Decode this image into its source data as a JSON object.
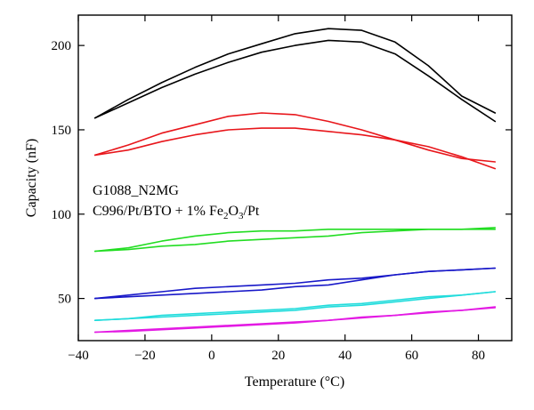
{
  "chart_data": {
    "type": "line",
    "xlabel": "Temperature (°C)",
    "ylabel": "Capacity (nF)",
    "xlim": [
      -40,
      90
    ],
    "ylim": [
      25,
      218
    ],
    "x_ticks": [
      -40,
      -20,
      0,
      20,
      40,
      60,
      80
    ],
    "y_ticks": [
      50,
      100,
      150,
      200
    ],
    "x_tick_labels": [
      "−40",
      "−20",
      "0",
      "20",
      "40",
      "60",
      "80"
    ],
    "y_tick_labels": [
      "50",
      "100",
      "150",
      "200"
    ],
    "annotations": [
      {
        "text": "G1088_N2MG"
      },
      {
        "text": "C996/Pt/BTO + 1% Fe",
        "sub": "2",
        "text2": "O",
        "sub2": "3",
        "text3": "/Pt"
      }
    ],
    "series": [
      {
        "color": "#000000",
        "x": [
          -35,
          -25,
          -15,
          -5,
          5,
          15,
          25,
          35,
          45,
          55,
          65,
          75,
          85
        ],
        "y": [
          157,
          168,
          178,
          187,
          195,
          201,
          207,
          210,
          209,
          202,
          188,
          170,
          160
        ]
      },
      {
        "color": "#000000",
        "x": [
          -35,
          -25,
          -15,
          -5,
          5,
          15,
          25,
          35,
          45,
          55,
          65,
          75,
          85
        ],
        "y": [
          157,
          166,
          175,
          183,
          190,
          196,
          200,
          203,
          202,
          195,
          182,
          168,
          155
        ]
      },
      {
        "color": "#e8161b",
        "x": [
          -35,
          -25,
          -15,
          -5,
          5,
          15,
          25,
          35,
          45,
          55,
          65,
          75,
          85
        ],
        "y": [
          135,
          141,
          148,
          153,
          158,
          160,
          159,
          155,
          150,
          144,
          138,
          133,
          131
        ]
      },
      {
        "color": "#e8161b",
        "x": [
          -35,
          -25,
          -15,
          -5,
          5,
          15,
          25,
          35,
          45,
          55,
          65,
          75,
          85
        ],
        "y": [
          135,
          138,
          143,
          147,
          150,
          151,
          151,
          149,
          147,
          144,
          140,
          134,
          127
        ]
      },
      {
        "color": "#22dd22",
        "x": [
          -35,
          -25,
          -15,
          -5,
          5,
          15,
          25,
          35,
          45,
          55,
          65,
          75,
          85
        ],
        "y": [
          78,
          80,
          84,
          87,
          89,
          90,
          90,
          91,
          91,
          91,
          91,
          91,
          92
        ]
      },
      {
        "color": "#22dd22",
        "x": [
          -35,
          -25,
          -15,
          -5,
          5,
          15,
          25,
          35,
          45,
          55,
          65,
          75,
          85
        ],
        "y": [
          78,
          79,
          81,
          82,
          84,
          85,
          86,
          87,
          89,
          90,
          91,
          91,
          91
        ]
      },
      {
        "color": "#1818c8",
        "x": [
          -35,
          -25,
          -15,
          -5,
          5,
          15,
          25,
          35,
          45,
          55,
          65,
          75,
          85
        ],
        "y": [
          50,
          52,
          54,
          56,
          57,
          58,
          59,
          61,
          62,
          64,
          66,
          67,
          68
        ]
      },
      {
        "color": "#1818c8",
        "x": [
          -35,
          -25,
          -15,
          -5,
          5,
          15,
          25,
          35,
          45,
          55,
          65,
          75,
          85
        ],
        "y": [
          50,
          51,
          52,
          53,
          54,
          55,
          57,
          58,
          61,
          64,
          66,
          67,
          68
        ]
      },
      {
        "color": "#22dcdc",
        "x": [
          -35,
          -25,
          -15,
          -5,
          5,
          15,
          25,
          35,
          45,
          55,
          65,
          75,
          85
        ],
        "y": [
          37,
          38,
          40,
          41,
          42,
          43,
          44,
          46,
          47,
          49,
          51,
          52,
          54
        ]
      },
      {
        "color": "#22dcdc",
        "x": [
          -35,
          -25,
          -15,
          -5,
          5,
          15,
          25,
          35,
          45,
          55,
          65,
          75,
          85
        ],
        "y": [
          37,
          38,
          39,
          40,
          41,
          42,
          43,
          45,
          46,
          48,
          50,
          52,
          54
        ]
      },
      {
        "color": "#e31ae3",
        "x": [
          -35,
          -25,
          -15,
          -5,
          5,
          15,
          25,
          35,
          45,
          55,
          65,
          75,
          85
        ],
        "y": [
          30,
          31,
          32,
          33,
          34,
          35,
          36,
          37,
          39,
          40,
          42,
          43,
          45
        ]
      },
      {
        "color": "#e31ae3",
        "x": [
          -35,
          -25,
          -15,
          -5,
          5,
          15,
          25,
          35,
          45,
          55,
          65,
          75,
          85
        ],
        "y": [
          30,
          30.5,
          31.5,
          32.5,
          33.5,
          34.5,
          35.5,
          37,
          38.5,
          40,
          41.5,
          43,
          44.5
        ]
      }
    ]
  }
}
